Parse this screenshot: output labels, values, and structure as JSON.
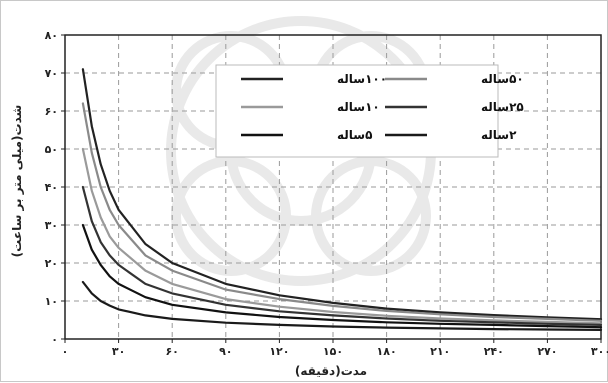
{
  "chart_data": {
    "type": "line",
    "title": "",
    "xlabel": "مدت(دقیقه)",
    "ylabel": "شدت(میلی متر بر ساعت)",
    "xlim": [
      0,
      300
    ],
    "ylim": [
      0,
      80
    ],
    "x_ticks": [
      {
        "value": 0,
        "label": "۰"
      },
      {
        "value": 30,
        "label": "۳۰"
      },
      {
        "value": 60,
        "label": "۶۰"
      },
      {
        "value": 90,
        "label": "۹۰"
      },
      {
        "value": 120,
        "label": "۱۲۰"
      },
      {
        "value": 150,
        "label": "۱۵۰"
      },
      {
        "value": 180,
        "label": "۱۸۰"
      },
      {
        "value": 210,
        "label": "۲۱۰"
      },
      {
        "value": 240,
        "label": "۲۴۰"
      },
      {
        "value": 270,
        "label": "۲۷۰"
      },
      {
        "value": 300,
        "label": "۳۰۰"
      }
    ],
    "y_ticks": [
      {
        "value": 0,
        "label": "۰"
      },
      {
        "value": 10,
        "label": "۱۰"
      },
      {
        "value": 20,
        "label": "۲۰"
      },
      {
        "value": 30,
        "label": "۳۰"
      },
      {
        "value": 40,
        "label": "۴۰"
      },
      {
        "value": 50,
        "label": "۵۰"
      },
      {
        "value": 60,
        "label": "۶۰"
      },
      {
        "value": 70,
        "label": "۷۰"
      },
      {
        "value": 80,
        "label": "۸۰"
      }
    ],
    "grid": true,
    "legend_position": "top-right",
    "x": [
      10,
      15,
      20,
      25,
      30,
      45,
      60,
      90,
      120,
      150,
      180,
      210,
      240,
      270,
      300
    ],
    "series": [
      {
        "name": "۱۰۰ساله",
        "color": "#222222",
        "values": [
          71,
          56,
          46,
          39,
          34,
          25,
          20,
          14.5,
          11.5,
          9.5,
          8,
          7,
          6.3,
          5.7,
          5.2
        ]
      },
      {
        "name": "۵۰ساله",
        "color": "#8a8a8a",
        "values": [
          62,
          49,
          40,
          34,
          30,
          22,
          18,
          13,
          10.5,
          8.7,
          7.4,
          6.5,
          5.8,
          5.3,
          4.8
        ]
      },
      {
        "name": "۱۰ساله",
        "color": "#9a9a9a",
        "values": [
          50,
          39,
          32,
          27,
          24,
          18,
          14.5,
          10.5,
          8.5,
          7.1,
          6.1,
          5.4,
          4.9,
          4.5,
          4.1
        ]
      },
      {
        "name": "۲۵ساله",
        "color": "#333333",
        "values": [
          40,
          31,
          25.5,
          22,
          19.5,
          14.5,
          12,
          9,
          7.3,
          6.2,
          5.4,
          4.8,
          4.4,
          4.0,
          3.7
        ]
      },
      {
        "name": "۵ساله",
        "color": "#111111",
        "values": [
          30,
          23.5,
          19.5,
          16.5,
          14.5,
          11,
          9,
          7,
          5.8,
          5.0,
          4.4,
          4.0,
          3.7,
          3.4,
          3.1
        ]
      },
      {
        "name": "۲ساله",
        "color": "#1a1a1a",
        "values": [
          15,
          12,
          10,
          8.8,
          7.8,
          6.2,
          5.3,
          4.3,
          3.7,
          3.3,
          3.0,
          2.8,
          2.6,
          2.5,
          2.4
        ]
      }
    ]
  }
}
